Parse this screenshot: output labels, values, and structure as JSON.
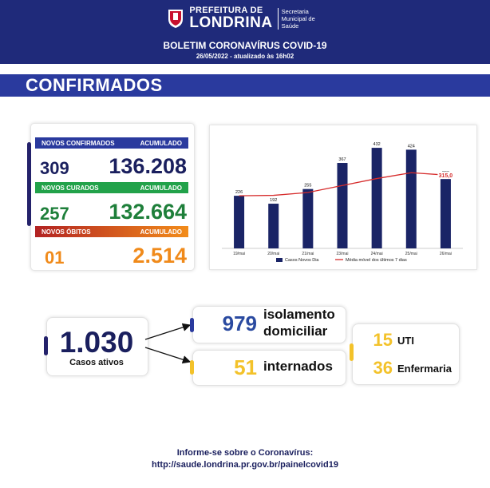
{
  "header": {
    "city_top": "PREFEITURA DE",
    "city_main": "LONDRINA",
    "secretaria": "Secretaria Municipal de Saúde",
    "title": "BOLETIM CORONAVÍRUS COVID-19",
    "date": "26/05/2022 - atualizado às 16h02"
  },
  "section_title": "CONFIRMADOS",
  "stats": {
    "confirmados": {
      "label": "NOVOS CONFIRMADOS",
      "acc_label": "ACUMULADO",
      "new": "309",
      "acc": "136.208"
    },
    "curados": {
      "label": "NOVOS CURADOS",
      "acc_label": "ACUMULADO",
      "new": "257",
      "acc": "132.664"
    },
    "obitos": {
      "label": "NOVOS ÓBITOS",
      "acc_label": "ACUMULADO",
      "new": "01",
      "acc": "2.514"
    }
  },
  "colors": {
    "navy": "#1f2a7a",
    "bar": "#1a2466",
    "line": "#d62b2b",
    "green": "#22a24a",
    "orange": "#f08a1a",
    "yellow": "#f3c22a"
  },
  "chart_data": {
    "type": "bar",
    "categories": [
      "19/mai",
      "20/mai",
      "21/mai",
      "23/mai",
      "24/mai",
      "25/mai",
      "26/mai"
    ],
    "series": [
      {
        "name": "Casos Novos Dia",
        "type": "bar",
        "values": [
          226,
          192,
          255,
          367,
          432,
          424,
          309
        ]
      },
      {
        "name": "Média móvel dos últimos 7 dias",
        "type": "line",
        "values": [
          226,
          228,
          240,
          270,
          300,
          325,
          315
        ]
      }
    ],
    "line_end_label": "315,0",
    "ylim": [
      0,
      470
    ],
    "grid": false,
    "legend": "bottom"
  },
  "ativos": {
    "value": "1.030",
    "label": "Casos ativos"
  },
  "isolamento": {
    "value": "979",
    "label_1": "isolamento",
    "label_2": "domiciliar"
  },
  "internados": {
    "value": "51",
    "label": "internados"
  },
  "uti": {
    "value": "15",
    "label": "UTI"
  },
  "enfermaria": {
    "value": "36",
    "label": "Enfermaria"
  },
  "footer": {
    "line1": "Informe-se sobre o Coronavírus:",
    "line2": "http://saude.londrina.pr.gov.br/painelcovid19"
  }
}
